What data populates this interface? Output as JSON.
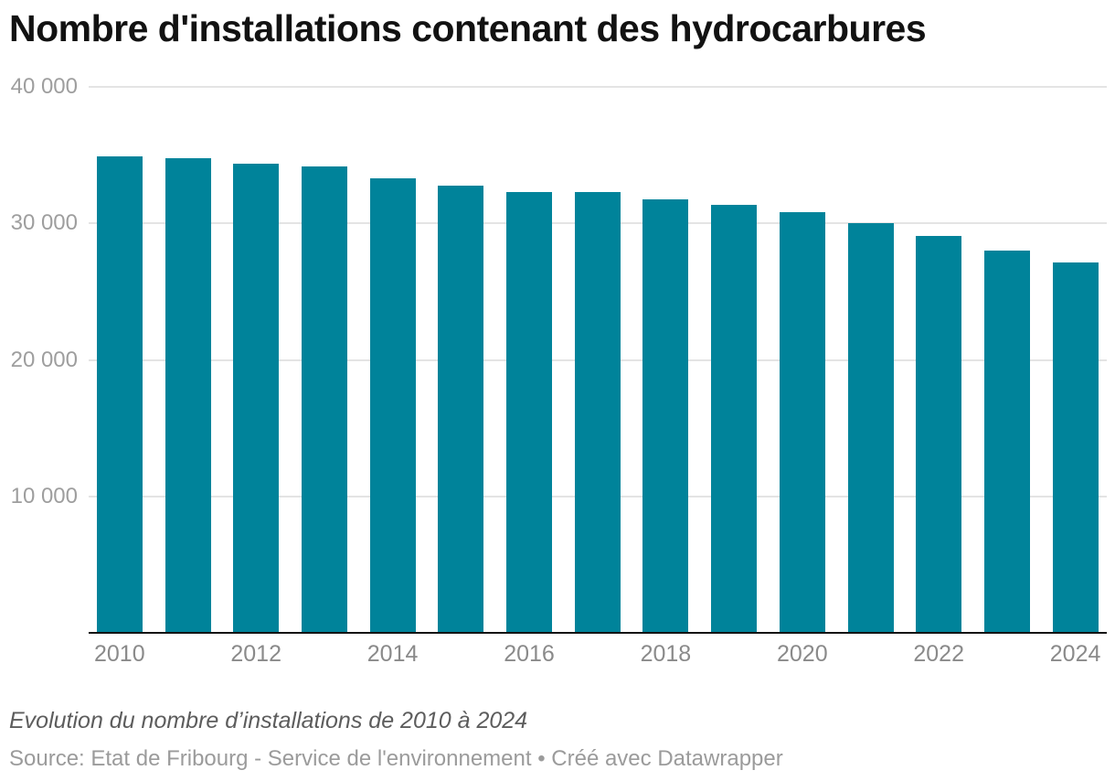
{
  "header": {
    "title": "Nombre d'installations contenant des hydrocarbures"
  },
  "footer": {
    "notes": "Evolution du nombre d’installations de 2010 à 2024",
    "source": "Source: Etat de Fribourg - Service de l'environnement • Créé avec Datawrapper"
  },
  "colors": {
    "bar": "#00839a",
    "grid": "#e4e4e4",
    "axis_line": "#141414",
    "y_label": "#9e9e9e",
    "x_label": "#8a8a8a",
    "title": "#121212",
    "notes": "#5d5d5d",
    "source": "#9b9b9b",
    "background": "#ffffff"
  },
  "chart_data": {
    "type": "bar",
    "title": "Nombre d'installations contenant des hydrocarbures",
    "categories": [
      "2010",
      "2011",
      "2012",
      "2013",
      "2014",
      "2015",
      "2016",
      "2017",
      "2018",
      "2019",
      "2020",
      "2021",
      "2022",
      "2023",
      "2024"
    ],
    "values": [
      34900,
      34750,
      34400,
      34150,
      33300,
      32800,
      32300,
      32300,
      31750,
      31350,
      30800,
      30000,
      29100,
      28000,
      27150
    ],
    "xlabel": "",
    "ylabel": "",
    "ylim": [
      0,
      40000
    ],
    "y_ticks": [
      {
        "value": 10000,
        "label": "10 000"
      },
      {
        "value": 20000,
        "label": "20 000"
      },
      {
        "value": 30000,
        "label": "30 000"
      },
      {
        "value": 40000,
        "label": "40 000"
      }
    ],
    "x_tick_labels": [
      "2010",
      "2012",
      "2014",
      "2016",
      "2018",
      "2020",
      "2022",
      "2024"
    ],
    "x_tick_step": 2,
    "grid": "horizontal",
    "legend": "none",
    "bar_color": "#00839a"
  }
}
